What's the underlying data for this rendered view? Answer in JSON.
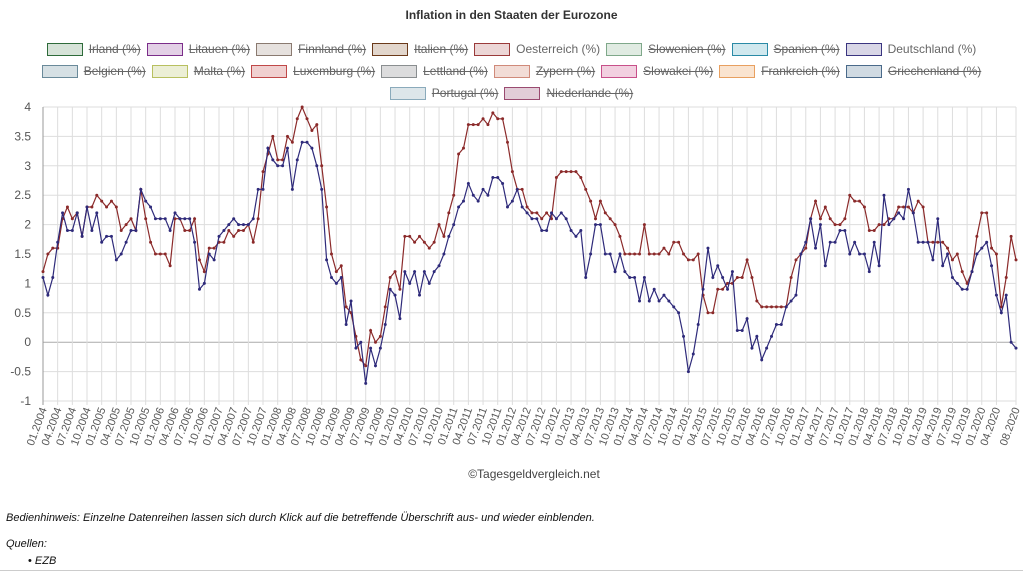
{
  "chart_data": {
    "type": "line",
    "title": "Inflation in den Staaten der Eurozone",
    "xlabel": "",
    "ylabel": "",
    "ylim": [
      -1,
      4
    ],
    "yticks": [
      "-1",
      "-0.5",
      "0",
      "0.5",
      "1",
      "1.5",
      "2",
      "2.5",
      "3",
      "3.5",
      "4"
    ],
    "grid": true,
    "legend_placement": "top",
    "x_tick_labels": [
      "01.2004",
      "04.2004",
      "07.2004",
      "10.2004",
      "01.2005",
      "04.2005",
      "07.2005",
      "10.2005",
      "01.2006",
      "04.2006",
      "07.2006",
      "10.2006",
      "01.2007",
      "04.2007",
      "07.2007",
      "10.2007",
      "01.2008",
      "04.2008",
      "07.2008",
      "10.2008",
      "01.2009",
      "04.2009",
      "07.2009",
      "10.2009",
      "01.2010",
      "04.2010",
      "07.2010",
      "10.2010",
      "01.2011",
      "04.2011",
      "07.2011",
      "10.2011",
      "01.2012",
      "04.2012",
      "07.2012",
      "10.2012",
      "01.2013",
      "04.2013",
      "07.2013",
      "10.2013",
      "01.2014",
      "04.2014",
      "07.2014",
      "10.2014",
      "01.2015",
      "04.2015",
      "07.2015",
      "10.2015",
      "01.2016",
      "04.2016",
      "07.2016",
      "10.2016",
      "01.2017",
      "04.2017",
      "07.2017",
      "10.2017",
      "01.2018",
      "04.2018",
      "07.2018",
      "10.2018",
      "01.2019",
      "04.2019",
      "07.2019",
      "10.2019",
      "01.2020",
      "04.2020",
      "08.2020"
    ],
    "legend": [
      {
        "name": "Irland (%)",
        "visible": false,
        "border": "#2e6b3a",
        "fill": "#d6e3d8"
      },
      {
        "name": "Litauen (%)",
        "visible": false,
        "border": "#7b2d8a",
        "fill": "#e3d0e6"
      },
      {
        "name": "Finnland (%)",
        "visible": false,
        "border": "#8a7a70",
        "fill": "#e6e1de"
      },
      {
        "name": "Italien (%)",
        "visible": false,
        "border": "#6b3a1a",
        "fill": "#e2d6cc"
      },
      {
        "name": "Oesterreich (%)",
        "visible": true,
        "border": "#9a3a3a",
        "fill": "#ecd6d6"
      },
      {
        "name": "Slowenien (%)",
        "visible": false,
        "border": "#7fa88a",
        "fill": "#e0ebe2"
      },
      {
        "name": "Spanien (%)",
        "visible": false,
        "border": "#2a8aa6",
        "fill": "#d0e8ee"
      },
      {
        "name": "Deutschland (%)",
        "visible": true,
        "border": "#3a3580",
        "fill": "#d8d6e6"
      },
      {
        "name": "Belgien (%)",
        "visible": false,
        "border": "#6a8a9a",
        "fill": "#d6e0e4"
      },
      {
        "name": "Malta (%)",
        "visible": false,
        "border": "#b8c060",
        "fill": "#ecefd6"
      },
      {
        "name": "Luxemburg (%)",
        "visible": false,
        "border": "#c04848",
        "fill": "#f0d0d0"
      },
      {
        "name": "Lettland (%)",
        "visible": false,
        "border": "#8a8e90",
        "fill": "#dcdcdd"
      },
      {
        "name": "Zypern (%)",
        "visible": false,
        "border": "#d08a7a",
        "fill": "#f2dcd6"
      },
      {
        "name": "Slowakei (%)",
        "visible": false,
        "border": "#c8508a",
        "fill": "#f2d0e0"
      },
      {
        "name": "Frankreich (%)",
        "visible": false,
        "border": "#e8a060",
        "fill": "#fae4d0"
      },
      {
        "name": "Griechenland (%)",
        "visible": false,
        "border": "#4a6a8a",
        "fill": "#d0dae2"
      },
      {
        "name": "Portugal (%)",
        "visible": false,
        "border": "#8aaabb",
        "fill": "#dde6ea"
      },
      {
        "name": "Niederlande (%)",
        "visible": false,
        "border": "#9a4a70",
        "fill": "#e2cdd8"
      }
    ],
    "series": [
      {
        "name": "Oesterreich (%)",
        "color": "#8b2a2a",
        "values": [
          1.2,
          1.5,
          1.6,
          1.6,
          2.1,
          2.3,
          2.1,
          2.2,
          1.8,
          2.3,
          2.3,
          2.5,
          2.4,
          2.3,
          2.4,
          2.3,
          1.9,
          2.0,
          2.1,
          1.9,
          2.6,
          2.1,
          1.7,
          1.5,
          1.5,
          1.5,
          1.3,
          2.1,
          2.1,
          1.9,
          1.9,
          2.1,
          1.4,
          1.2,
          1.6,
          1.6,
          1.7,
          1.7,
          1.9,
          1.8,
          1.9,
          1.9,
          2.0,
          1.7,
          2.1,
          2.9,
          3.2,
          3.5,
          3.1,
          3.1,
          3.5,
          3.4,
          3.8,
          4.0,
          3.8,
          3.6,
          3.7,
          3.0,
          2.3,
          1.5,
          1.2,
          1.3,
          0.6,
          0.5,
          0.1,
          -0.3,
          -0.4,
          0.2,
          0.0,
          0.1,
          0.6,
          1.1,
          1.2,
          0.9,
          1.8,
          1.8,
          1.7,
          1.8,
          1.7,
          1.6,
          1.7,
          2.0,
          1.8,
          2.2,
          2.5,
          3.2,
          3.3,
          3.7,
          3.7,
          3.7,
          3.8,
          3.7,
          3.9,
          3.8,
          3.8,
          3.4,
          2.9,
          2.6,
          2.6,
          2.3,
          2.2,
          2.2,
          2.1,
          2.2,
          2.1,
          2.8,
          2.9,
          2.9,
          2.9,
          2.9,
          2.8,
          2.6,
          2.4,
          2.1,
          2.4,
          2.2,
          2.1,
          2.0,
          1.8,
          1.5,
          1.5,
          1.5,
          1.5,
          2.0,
          1.5,
          1.5,
          1.5,
          1.6,
          1.5,
          1.7,
          1.7,
          1.5,
          1.4,
          1.4,
          1.5,
          0.8,
          0.5,
          0.5,
          0.9,
          0.9,
          1.0,
          1.0,
          1.1,
          1.1,
          1.4,
          1.1,
          0.7,
          0.6,
          0.6,
          0.6,
          0.6,
          0.6,
          0.6,
          1.1,
          1.4,
          1.5,
          1.6,
          2.1,
          2.4,
          2.1,
          2.3,
          2.1,
          2.0,
          2.0,
          2.1,
          2.5,
          2.4,
          2.4,
          2.3,
          1.9,
          1.9,
          2.0,
          2.0,
          2.1,
          2.1,
          2.3,
          2.3,
          2.3,
          2.2,
          2.4,
          2.3,
          1.7,
          1.7,
          1.7,
          1.7,
          1.6,
          1.4,
          1.5,
          1.2,
          1.0,
          1.2,
          1.8,
          2.2,
          2.2,
          1.6,
          1.5,
          0.6,
          1.1,
          1.8,
          1.4
        ]
      },
      {
        "name": "Deutschland (%)",
        "color": "#2e2a7a",
        "values": [
          1.1,
          0.8,
          1.1,
          1.7,
          2.2,
          1.9,
          1.9,
          2.2,
          1.8,
          2.3,
          1.9,
          2.2,
          1.7,
          1.8,
          1.8,
          1.4,
          1.5,
          1.7,
          1.9,
          1.9,
          2.6,
          2.4,
          2.3,
          2.1,
          2.1,
          2.1,
          1.9,
          2.2,
          2.1,
          2.1,
          2.1,
          1.7,
          0.9,
          1.0,
          1.5,
          1.4,
          1.8,
          1.9,
          2.0,
          2.1,
          2.0,
          2.0,
          2.0,
          2.1,
          2.6,
          2.6,
          3.3,
          3.1,
          3.0,
          3.0,
          3.3,
          2.6,
          3.1,
          3.4,
          3.4,
          3.3,
          3.0,
          2.6,
          1.4,
          1.1,
          1.0,
          1.1,
          0.3,
          0.7,
          -0.1,
          0.0,
          -0.7,
          -0.1,
          -0.4,
          -0.1,
          0.3,
          0.9,
          0.8,
          0.4,
          1.2,
          1.0,
          1.2,
          0.8,
          1.2,
          1.0,
          1.2,
          1.3,
          1.5,
          1.8,
          2.0,
          2.3,
          2.4,
          2.7,
          2.5,
          2.4,
          2.6,
          2.5,
          2.8,
          2.8,
          2.7,
          2.3,
          2.4,
          2.6,
          2.3,
          2.2,
          2.1,
          2.1,
          1.9,
          1.9,
          2.2,
          2.1,
          2.2,
          2.1,
          1.9,
          1.8,
          1.9,
          1.1,
          1.5,
          2.0,
          2.0,
          1.5,
          1.5,
          1.2,
          1.5,
          1.2,
          1.1,
          1.1,
          0.7,
          1.1,
          0.7,
          0.9,
          0.7,
          0.8,
          0.7,
          0.6,
          0.5,
          0.1,
          -0.5,
          -0.2,
          0.3,
          0.9,
          1.6,
          1.1,
          1.3,
          1.1,
          0.9,
          1.2,
          0.2,
          0.2,
          0.4,
          -0.1,
          0.1,
          -0.3,
          -0.1,
          0.1,
          0.3,
          0.3,
          0.6,
          0.7,
          0.8,
          1.5,
          1.7,
          2.1,
          1.6,
          2.0,
          1.3,
          1.7,
          1.7,
          1.9,
          1.9,
          1.5,
          1.7,
          1.5,
          1.5,
          1.2,
          1.7,
          1.3,
          2.5,
          2.0,
          2.1,
          2.2,
          2.1,
          2.6,
          2.2,
          1.7,
          1.7,
          1.7,
          1.4,
          2.1,
          1.3,
          1.5,
          1.1,
          1.0,
          0.9,
          0.9,
          1.2,
          1.5,
          1.6,
          1.7,
          1.3,
          0.8,
          0.5,
          0.8,
          0.0,
          -0.1
        ]
      }
    ]
  },
  "watermark": "©Tagesgeldvergleich.net",
  "hint": "Bedienhinweis: Einzelne Datenreihen lassen sich durch Klick auf die betreffende Überschrift aus- und wieder einblenden.",
  "sources": {
    "label": "Quellen:",
    "items": [
      "EZB"
    ]
  }
}
